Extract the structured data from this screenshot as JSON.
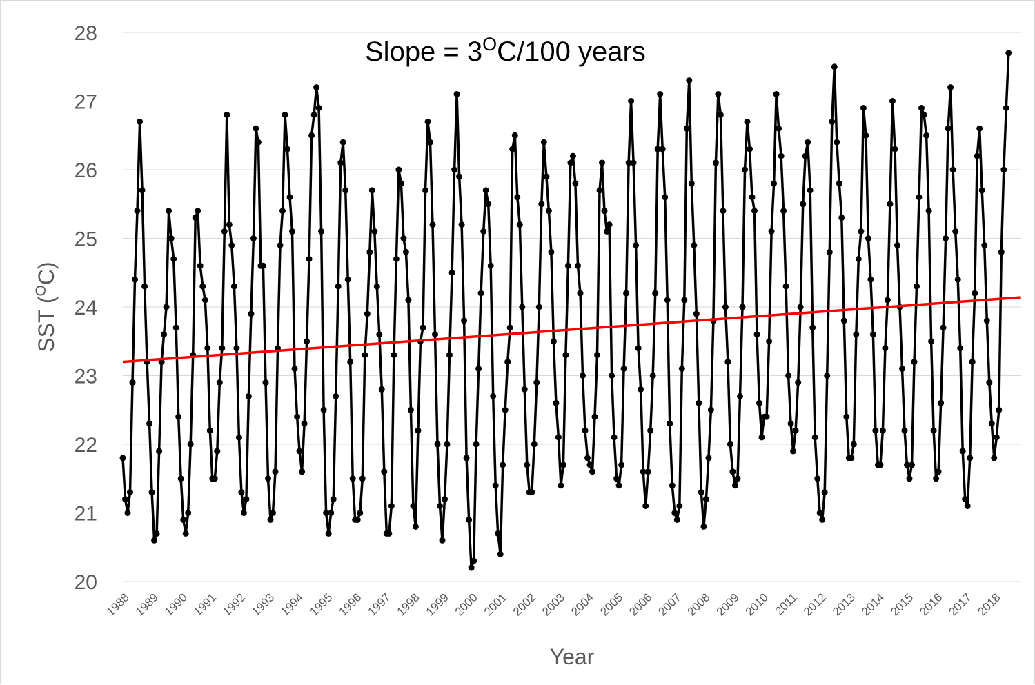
{
  "chart_data": {
    "type": "line",
    "title": "",
    "annotation": {
      "prefix": "Slope = 3",
      "sup": "O",
      "suffix": "C/100 years"
    },
    "xlabel": "Year",
    "ylabel": {
      "prefix": "SST (",
      "sup": "O",
      "suffix": "C)"
    },
    "ylim": [
      20,
      28
    ],
    "yticks": [
      20,
      21,
      22,
      23,
      24,
      25,
      26,
      27,
      28
    ],
    "x_start": 1988,
    "x_end": 2018.58,
    "xticks": [
      "1988",
      "1989",
      "1990",
      "1991",
      "1992",
      "1993",
      "1994",
      "1995",
      "1996",
      "1997",
      "1998",
      "1999",
      "2000",
      "2001",
      "2002",
      "2003",
      "2004",
      "2005",
      "2006",
      "2007",
      "2008",
      "2009",
      "2010",
      "2011",
      "2012",
      "2013",
      "2014",
      "2015",
      "2016",
      "2017",
      "2018"
    ],
    "grid": true,
    "series": [
      {
        "role": "monthly SST",
        "color": "#000000",
        "values": [
          21.8,
          21.2,
          21.0,
          21.3,
          22.9,
          24.4,
          25.4,
          26.7,
          25.7,
          24.3,
          23.2,
          22.3,
          21.3,
          20.6,
          20.7,
          21.9,
          23.2,
          23.6,
          24.0,
          25.4,
          25.0,
          24.7,
          23.7,
          22.4,
          21.5,
          20.9,
          20.7,
          21.0,
          22.0,
          23.3,
          25.3,
          25.4,
          24.6,
          24.3,
          24.1,
          23.4,
          22.2,
          21.5,
          21.5,
          21.9,
          22.9,
          23.4,
          25.1,
          26.8,
          25.2,
          24.9,
          24.3,
          23.4,
          22.1,
          21.3,
          21.0,
          21.2,
          22.7,
          23.9,
          25.0,
          26.6,
          26.4,
          24.6,
          24.6,
          22.9,
          21.5,
          20.9,
          21.0,
          21.6,
          23.4,
          24.9,
          25.4,
          26.8,
          26.3,
          25.6,
          25.1,
          23.1,
          22.4,
          21.9,
          21.6,
          22.3,
          23.5,
          24.7,
          26.5,
          26.8,
          27.2,
          26.9,
          25.1,
          22.5,
          21.0,
          20.7,
          21.0,
          21.2,
          22.7,
          24.3,
          26.1,
          26.4,
          25.7,
          24.4,
          23.2,
          21.5,
          20.9,
          20.9,
          21.0,
          21.5,
          23.3,
          23.9,
          24.8,
          25.7,
          25.1,
          24.3,
          23.6,
          22.8,
          21.6,
          20.7,
          20.7,
          21.1,
          23.3,
          24.7,
          26.0,
          25.8,
          25.0,
          24.8,
          24.1,
          22.5,
          21.1,
          20.8,
          22.2,
          23.5,
          23.7,
          25.7,
          26.7,
          26.4,
          25.2,
          23.6,
          22.0,
          21.1,
          20.6,
          21.2,
          22.0,
          23.3,
          24.5,
          26.0,
          27.1,
          25.9,
          25.2,
          23.8,
          21.8,
          20.9,
          20.2,
          20.3,
          22.0,
          23.1,
          24.2,
          25.1,
          25.7,
          25.5,
          24.6,
          22.7,
          21.4,
          20.7,
          20.4,
          21.7,
          22.5,
          23.2,
          23.7,
          26.3,
          26.5,
          25.6,
          25.2,
          24.0,
          22.8,
          21.7,
          21.3,
          21.3,
          22.0,
          22.9,
          24.0,
          25.5,
          26.4,
          25.9,
          25.4,
          24.8,
          23.5,
          22.6,
          22.1,
          21.4,
          21.7,
          23.3,
          24.6,
          26.1,
          26.2,
          25.8,
          24.6,
          24.2,
          23.0,
          22.2,
          21.8,
          21.7,
          21.6,
          22.4,
          23.3,
          25.7,
          26.1,
          25.4,
          25.1,
          25.2,
          23.0,
          22.1,
          21.5,
          21.4,
          21.7,
          23.1,
          24.2,
          26.1,
          27.0,
          26.1,
          24.9,
          23.4,
          22.8,
          21.6,
          21.1,
          21.6,
          22.2,
          23.0,
          24.2,
          26.3,
          27.1,
          26.3,
          25.6,
          24.1,
          22.3,
          21.4,
          21.0,
          20.9,
          21.1,
          23.1,
          24.1,
          26.6,
          27.3,
          25.8,
          24.9,
          23.9,
          22.6,
          21.3,
          20.8,
          21.2,
          21.8,
          22.5,
          23.8,
          26.1,
          27.1,
          26.8,
          25.4,
          24.0,
          23.2,
          22.0,
          21.6,
          21.4,
          21.5,
          22.7,
          24.0,
          26.0,
          26.7,
          26.3,
          25.6,
          25.4,
          23.6,
          22.6,
          22.1,
          22.4,
          22.4,
          23.5,
          25.1,
          25.8,
          27.1,
          26.6,
          26.2,
          25.4,
          24.3,
          23.0,
          22.3,
          21.9,
          22.2,
          22.9,
          24.0,
          25.5,
          26.2,
          26.4,
          25.7,
          23.7,
          22.1,
          21.5,
          21.0,
          20.9,
          21.3,
          23.0,
          24.8,
          26.7,
          27.5,
          26.4,
          25.8,
          25.3,
          23.8,
          22.4,
          21.8,
          21.8,
          22.0,
          23.6,
          24.7,
          25.1,
          26.9,
          26.5,
          25.0,
          24.4,
          23.6,
          22.2,
          21.7,
          21.7,
          22.2,
          23.4,
          24.1,
          25.5,
          27.0,
          26.3,
          24.9,
          24.0,
          23.1,
          22.2,
          21.7,
          21.5,
          21.7,
          23.2,
          24.3,
          25.6,
          26.9,
          26.8,
          26.5,
          25.4,
          23.5,
          22.2,
          21.5,
          21.6,
          22.6,
          23.7,
          25.0,
          26.6,
          27.2,
          26.0,
          25.1,
          24.4,
          23.4,
          21.9,
          21.2,
          21.1,
          21.8,
          23.2,
          24.2,
          26.2,
          26.6,
          25.7,
          24.9,
          23.8,
          22.9,
          22.3,
          21.8,
          22.1,
          22.5,
          24.8,
          26.0,
          26.9,
          27.7
        ]
      },
      {
        "role": "linear trend",
        "color": "#ff0000",
        "x": [
          1988,
          2018.9
        ],
        "y": [
          23.2,
          24.14
        ]
      }
    ]
  }
}
